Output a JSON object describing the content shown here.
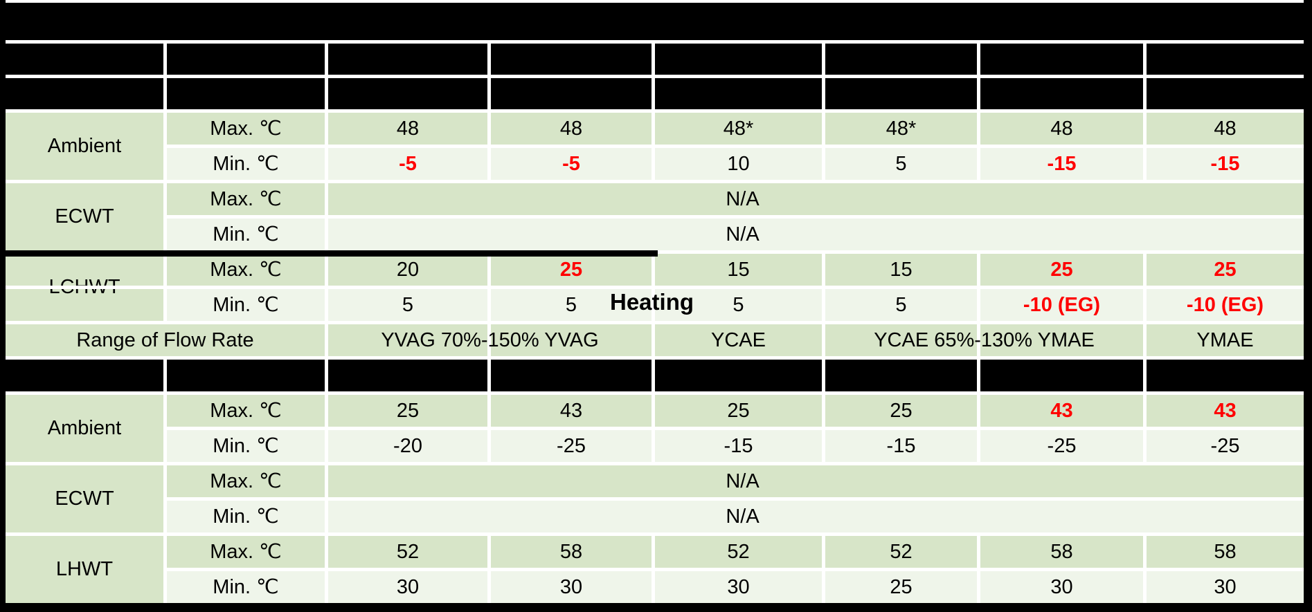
{
  "overlay": {
    "heating_label": "Heating"
  },
  "row_headers": {
    "max": "Max. ℃",
    "min": "Min. ℃"
  },
  "flow_label": "Range of Flow Rate",
  "sections": [
    {
      "name": "section-1",
      "groups": [
        {
          "label": "Ambient",
          "max": [
            {
              "v": "48"
            },
            {
              "v": "48"
            },
            {
              "v": "48*"
            },
            {
              "v": "48*"
            },
            {
              "v": "48"
            },
            {
              "v": "48"
            }
          ],
          "min": [
            {
              "v": "-5",
              "r": true
            },
            {
              "v": "-5",
              "r": true
            },
            {
              "v": "10"
            },
            {
              "v": "5"
            },
            {
              "v": "-15",
              "r": true
            },
            {
              "v": "-15",
              "r": true
            }
          ]
        },
        {
          "label": "ECWT",
          "na": "N/A"
        },
        {
          "label": "LCHWT",
          "label_divider": true,
          "max": [
            {
              "v": "20"
            },
            {
              "v": "25",
              "r": true
            },
            {
              "v": "15"
            },
            {
              "v": "15"
            },
            {
              "v": "25",
              "r": true
            },
            {
              "v": "25",
              "r": true
            }
          ],
          "min": [
            {
              "v": "5"
            },
            {
              "v": "5"
            },
            {
              "v": "5"
            },
            {
              "v": "5"
            },
            {
              "v": "-10 (EG)",
              "r": true
            },
            {
              "v": "-10 (EG)",
              "r": true
            }
          ]
        }
      ],
      "flow_cells": [
        {
          "text": "YVAG 70%-150% YVAG",
          "cols": [
            2,
            3
          ]
        },
        {
          "text": "YCAE",
          "cols": [
            4,
            4
          ]
        },
        {
          "text": "YCAE 65%-130% YMAE",
          "cols": [
            5,
            6
          ]
        },
        {
          "text": "YMAE",
          "cols": [
            7,
            7
          ]
        }
      ]
    },
    {
      "name": "section-2",
      "groups": [
        {
          "label": "Ambient",
          "max": [
            {
              "v": "25"
            },
            {
              "v": "43"
            },
            {
              "v": "25"
            },
            {
              "v": "25"
            },
            {
              "v": "43",
              "r": true
            },
            {
              "v": "43",
              "r": true
            }
          ],
          "min": [
            {
              "v": "-20"
            },
            {
              "v": "-25"
            },
            {
              "v": "-15"
            },
            {
              "v": "-15"
            },
            {
              "v": "-25"
            },
            {
              "v": "-25"
            }
          ]
        },
        {
          "label": "ECWT",
          "na": "N/A"
        },
        {
          "label": "LHWT",
          "max": [
            {
              "v": "52"
            },
            {
              "v": "58"
            },
            {
              "v": "52"
            },
            {
              "v": "52"
            },
            {
              "v": "58"
            },
            {
              "v": "58"
            }
          ],
          "min": [
            {
              "v": "30"
            },
            {
              "v": "30"
            },
            {
              "v": "30"
            },
            {
              "v": "25"
            },
            {
              "v": "30"
            },
            {
              "v": "30"
            }
          ]
        }
      ]
    }
  ],
  "colors": {
    "group_green": "#d7e5c8",
    "light_green": "#eff5ea",
    "header_black": "#000000",
    "red_highlight": "#ff0000",
    "grid_white": "#ffffff"
  }
}
